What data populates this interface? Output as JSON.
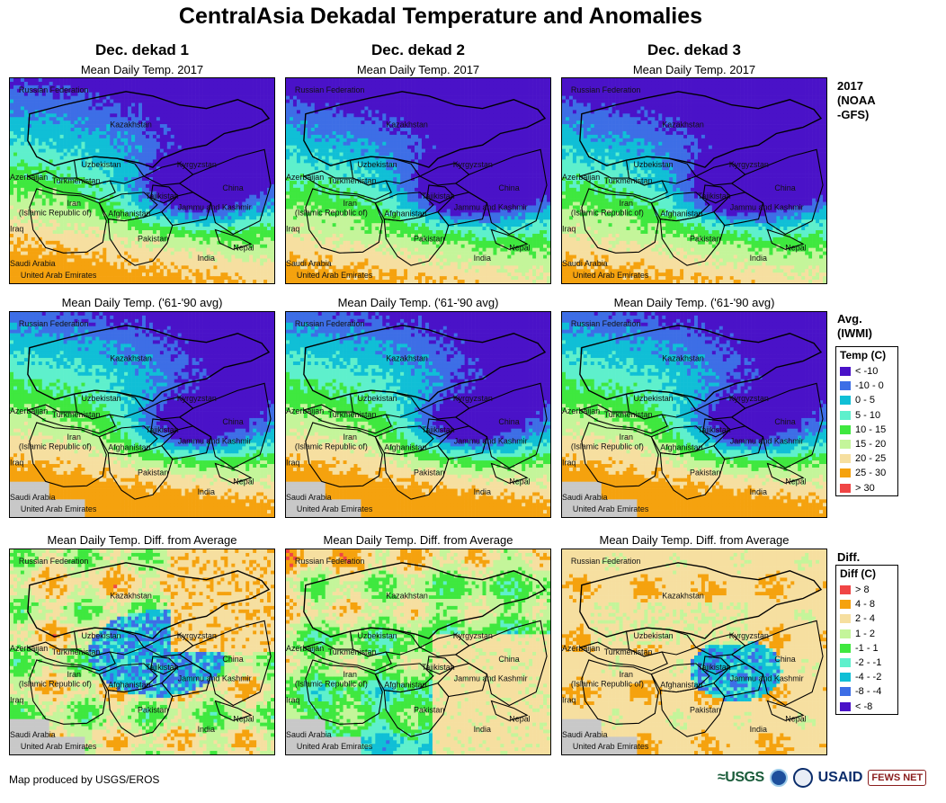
{
  "title": "CentralAsia Dekadal Temperature and Anomalies",
  "columns": [
    "Dec. dekad 1",
    "Dec. dekad 2",
    "Dec. dekad 3"
  ],
  "rows": [
    {
      "map_title": "Mean Daily Temp. 2017",
      "row_label": [
        "2017",
        "(NOAA",
        "-GFS)"
      ],
      "scheme": "temp"
    },
    {
      "map_title": "Mean Daily Temp. ('61-'90 avg)",
      "row_label": [
        "Avg.",
        "(IWMI)"
      ],
      "scheme": "temp"
    },
    {
      "map_title": "Mean Daily Temp. Diff. from Average",
      "row_label": [
        "Diff."
      ],
      "scheme": "diff"
    }
  ],
  "place_labels": [
    {
      "name": "Russian Federation"
    },
    {
      "name": "Kazakhstan"
    },
    {
      "name": "Uzbekistan"
    },
    {
      "name": "Kyrgyzstan"
    },
    {
      "name": "Azerbaijan"
    },
    {
      "name": "Turkmenistan"
    },
    {
      "name": "Tajikistan"
    },
    {
      "name": "China"
    },
    {
      "name": "Iran"
    },
    {
      "name": "(Islamic Republic of)"
    },
    {
      "name": "Afghanistan"
    },
    {
      "name": "Jammu and Kashmir"
    },
    {
      "name": "Iraq"
    },
    {
      "name": "Pakistan"
    },
    {
      "name": "Nepal"
    },
    {
      "name": "India"
    },
    {
      "name": "Saudi Arabia"
    },
    {
      "name": "United Arab Emirates"
    }
  ],
  "temp_legend": {
    "title": "Temp (C)",
    "items": [
      {
        "label": "< -10",
        "color": "#4a12c8"
      },
      {
        "label": "-10 - 0",
        "color": "#3d6ee6"
      },
      {
        "label": "0 - 5",
        "color": "#10bfd6"
      },
      {
        "label": "5 - 10",
        "color": "#5ef0cc"
      },
      {
        "label": "10 - 15",
        "color": "#3fe83f"
      },
      {
        "label": "15 - 20",
        "color": "#c4f59a"
      },
      {
        "label": "20 - 25",
        "color": "#f6dfa0"
      },
      {
        "label": "25 - 30",
        "color": "#f5a20e"
      },
      {
        "label": "> 30",
        "color": "#f04545"
      }
    ]
  },
  "diff_legend": {
    "title": "Diff (C)",
    "items": [
      {
        "label": "> 8",
        "color": "#f04545"
      },
      {
        "label": "4 - 8",
        "color": "#f5a20e"
      },
      {
        "label": "2 - 4",
        "color": "#f6dfa0"
      },
      {
        "label": "1 - 2",
        "color": "#c4f59a"
      },
      {
        "label": "-1 - 1",
        "color": "#3fe83f"
      },
      {
        "label": "-2 - -1",
        "color": "#5ef0cc"
      },
      {
        "label": "-4 - -2",
        "color": "#10bfd6"
      },
      {
        "label": "-8 - -4",
        "color": "#3d6ee6"
      },
      {
        "label": "< -8",
        "color": "#4a12c8"
      }
    ]
  },
  "map_fields": [
    [
      "temp_cold",
      "temp_cold2",
      "temp_cold2"
    ],
    [
      "temp_avg",
      "temp_avg",
      "temp_avg"
    ],
    [
      "diff_mixed",
      "diff_cool",
      "diff_warm"
    ]
  ],
  "footer": {
    "credit": "Map produced by USGS/EROS"
  },
  "logos": {
    "usgs": "≈USGS",
    "usaid": "USAID",
    "fews": "FEWS NET"
  },
  "colors": {
    "border": "#000000",
    "no_data": "#c8c8c8"
  }
}
